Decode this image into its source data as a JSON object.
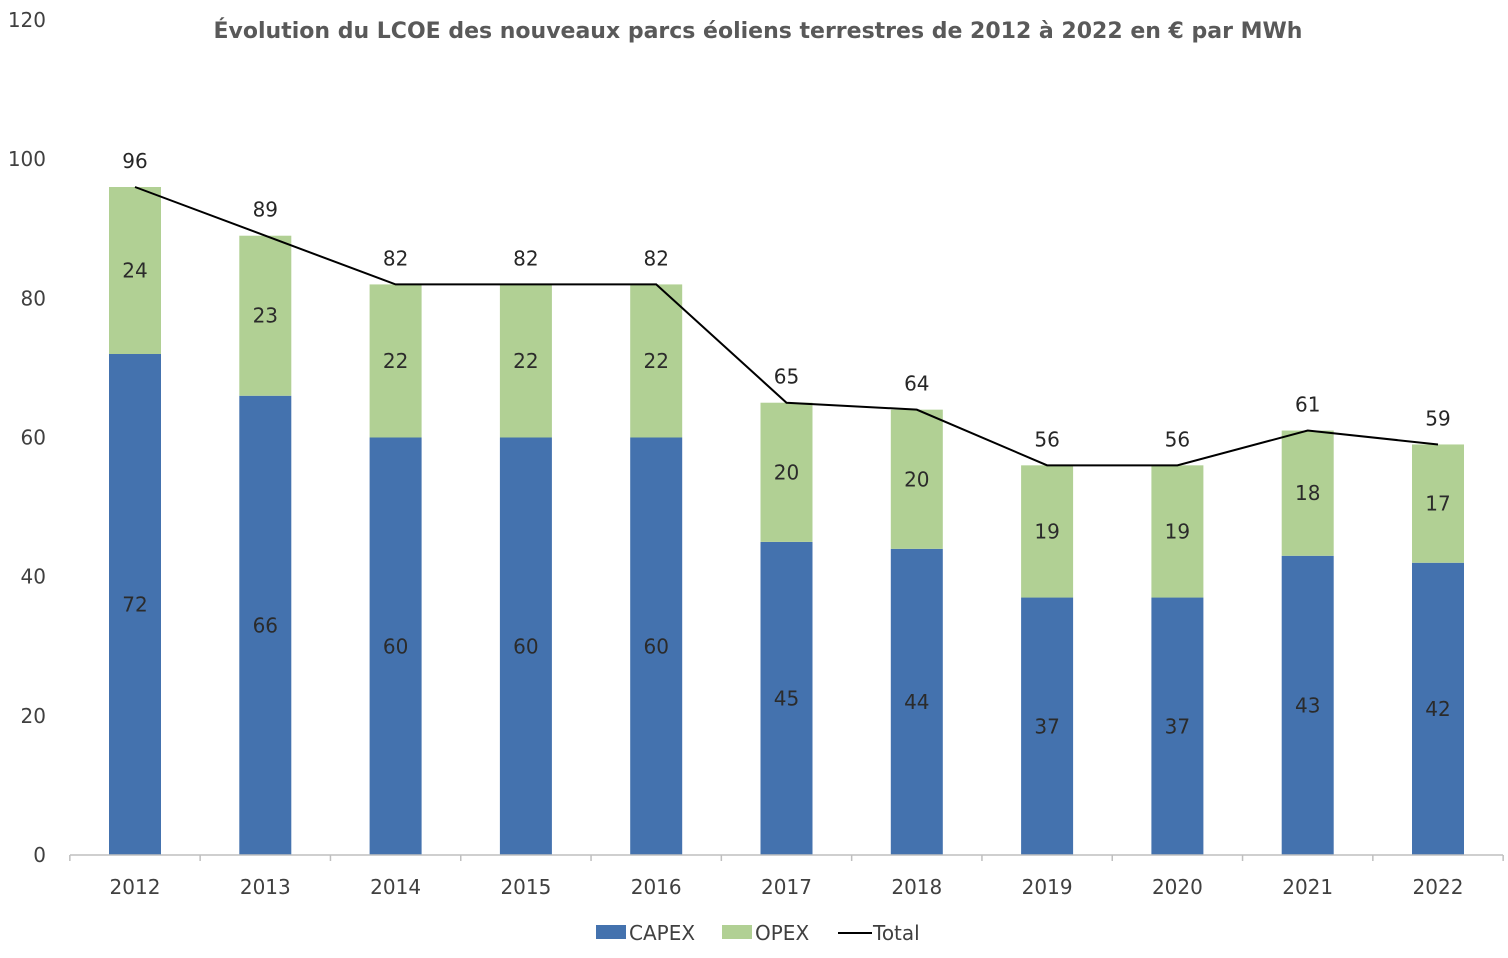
{
  "chart_data": {
    "type": "bar",
    "stacked": true,
    "title": "Évolution du LCOE des nouveaux parcs éoliens terrestres de 2012 à 2022 en € par MWh",
    "xlabel": "",
    "ylabel": "",
    "ylim": [
      0,
      120
    ],
    "yticks": [
      0,
      20,
      40,
      60,
      80,
      100,
      120
    ],
    "grid": false,
    "legend": "bottom-center",
    "categories": [
      "2012",
      "2013",
      "2014",
      "2015",
      "2016",
      "2017",
      "2018",
      "2019",
      "2020",
      "2021",
      "2022"
    ],
    "series": [
      {
        "name": "CAPEX",
        "kind": "bar",
        "color": "#4472ae",
        "values": [
          72,
          66,
          60,
          60,
          60,
          45,
          44,
          37,
          37,
          43,
          42
        ]
      },
      {
        "name": "OPEX",
        "kind": "bar",
        "color": "#b1d094",
        "values": [
          24,
          23,
          22,
          22,
          22,
          20,
          20,
          19,
          19,
          18,
          17
        ]
      },
      {
        "name": "Total",
        "kind": "line",
        "color": "#000000",
        "values": [
          96,
          89,
          82,
          82,
          82,
          65,
          64,
          56,
          56,
          61,
          59
        ]
      }
    ]
  }
}
